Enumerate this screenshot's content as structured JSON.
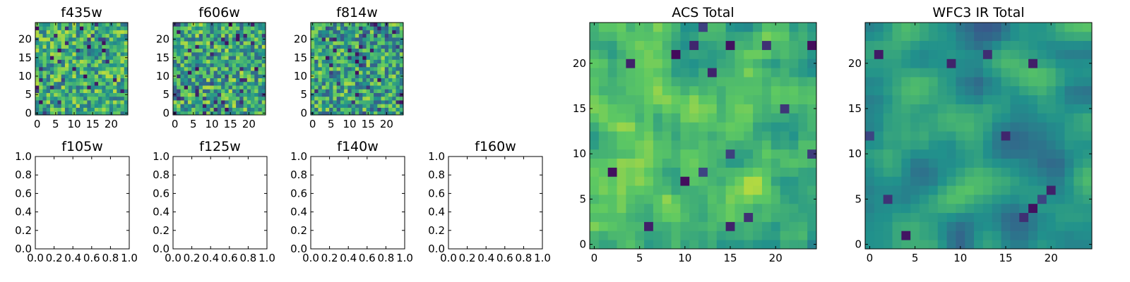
{
  "colormap": {
    "name": "viridis",
    "stops": [
      "#440154",
      "#3b528b",
      "#21918c",
      "#5ec962",
      "#fde725"
    ]
  },
  "chart_data": [
    {
      "id": "f435w",
      "type": "heatmap",
      "title": "f435w",
      "empty": false,
      "grid_size": 25,
      "seed": 11,
      "smooth": 0,
      "base": 0.62,
      "spread": 0.28,
      "dark_frac": 0.06,
      "xticks": [
        0,
        5,
        10,
        15,
        20
      ],
      "yticks": [
        0,
        5,
        10,
        15,
        20
      ]
    },
    {
      "id": "f606w",
      "type": "heatmap",
      "title": "f606w",
      "empty": false,
      "grid_size": 25,
      "seed": 23,
      "smooth": 0,
      "base": 0.6,
      "spread": 0.3,
      "dark_frac": 0.06,
      "xticks": [
        0,
        5,
        10,
        15,
        20
      ],
      "yticks": [
        0,
        5,
        10,
        15,
        20
      ]
    },
    {
      "id": "f814w",
      "type": "heatmap",
      "title": "f814w",
      "empty": false,
      "grid_size": 25,
      "seed": 37,
      "smooth": 0,
      "base": 0.58,
      "spread": 0.3,
      "dark_frac": 0.07,
      "xticks": [
        0,
        5,
        10,
        15,
        20
      ],
      "yticks": [
        0,
        5,
        10,
        15,
        20
      ]
    },
    {
      "id": "f105w",
      "type": "heatmap",
      "title": "f105w",
      "empty": true,
      "xticks": [
        "0.0",
        "0.2",
        "0.4",
        "0.6",
        "0.8",
        "1.0"
      ],
      "yticks": [
        "0.0",
        "0.2",
        "0.4",
        "0.6",
        "0.8",
        "1.0"
      ]
    },
    {
      "id": "f125w",
      "type": "heatmap",
      "title": "f125w",
      "empty": true,
      "xticks": [
        "0.0",
        "0.2",
        "0.4",
        "0.6",
        "0.8",
        "1.0"
      ],
      "yticks": [
        "0.0",
        "0.2",
        "0.4",
        "0.6",
        "0.8",
        "1.0"
      ]
    },
    {
      "id": "f140w",
      "type": "heatmap",
      "title": "f140w",
      "empty": true,
      "xticks": [
        "0.0",
        "0.2",
        "0.4",
        "0.6",
        "0.8",
        "1.0"
      ],
      "yticks": [
        "0.0",
        "0.2",
        "0.4",
        "0.6",
        "0.8",
        "1.0"
      ]
    },
    {
      "id": "f160w",
      "type": "heatmap",
      "title": "f160w",
      "empty": true,
      "xticks": [
        "0.0",
        "0.2",
        "0.4",
        "0.6",
        "0.8",
        "1.0"
      ],
      "yticks": [
        "0.0",
        "0.2",
        "0.4",
        "0.6",
        "0.8",
        "1.0"
      ]
    },
    {
      "id": "acs_total",
      "type": "heatmap",
      "title": "ACS Total",
      "empty": false,
      "grid_size": 25,
      "seed": 53,
      "smooth": 1,
      "base": 0.66,
      "spread": 0.22,
      "dark_frac": 0.035,
      "xticks": [
        0,
        5,
        10,
        15,
        20
      ],
      "yticks": [
        0,
        5,
        10,
        15,
        20
      ]
    },
    {
      "id": "wfc3_ir_total",
      "type": "heatmap",
      "title": "WFC3 IR Total",
      "empty": false,
      "grid_size": 25,
      "seed": 71,
      "smooth": 2,
      "base": 0.5,
      "spread": 0.22,
      "dark_frac": 0.02,
      "xticks": [
        0,
        5,
        10,
        15,
        20
      ],
      "yticks": [
        0,
        5,
        10,
        15,
        20
      ]
    }
  ]
}
